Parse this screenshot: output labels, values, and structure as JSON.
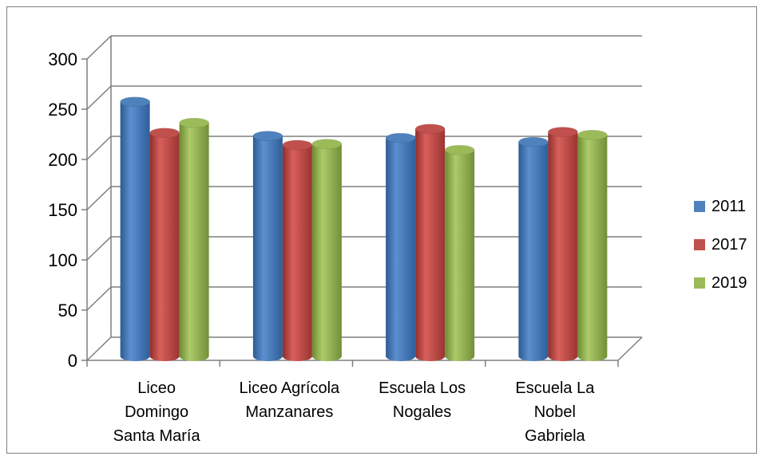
{
  "chart_data": {
    "type": "bar",
    "categories": [
      [
        "Liceo",
        "Domingo",
        "Santa María"
      ],
      [
        "Liceo Agrícola",
        "Manzanares"
      ],
      [
        "Escuela Los",
        "Nogales"
      ],
      [
        "Escuela La",
        "Nobel",
        "Gabriela"
      ]
    ],
    "series": [
      {
        "name": "2011",
        "color": "#4f81bd",
        "values": [
          258,
          224,
          222,
          218
        ]
      },
      {
        "name": "2017",
        "color": "#c0504d",
        "values": [
          227,
          215,
          231,
          228
        ]
      },
      {
        "name": "2019",
        "color": "#9bbb59",
        "values": [
          237,
          216,
          210,
          225
        ]
      }
    ],
    "y_ticks": [
      "0",
      "50",
      "100",
      "150",
      "200",
      "250",
      "300"
    ],
    "ylim": [
      0,
      300
    ],
    "grid": true,
    "legend_position": "right"
  }
}
